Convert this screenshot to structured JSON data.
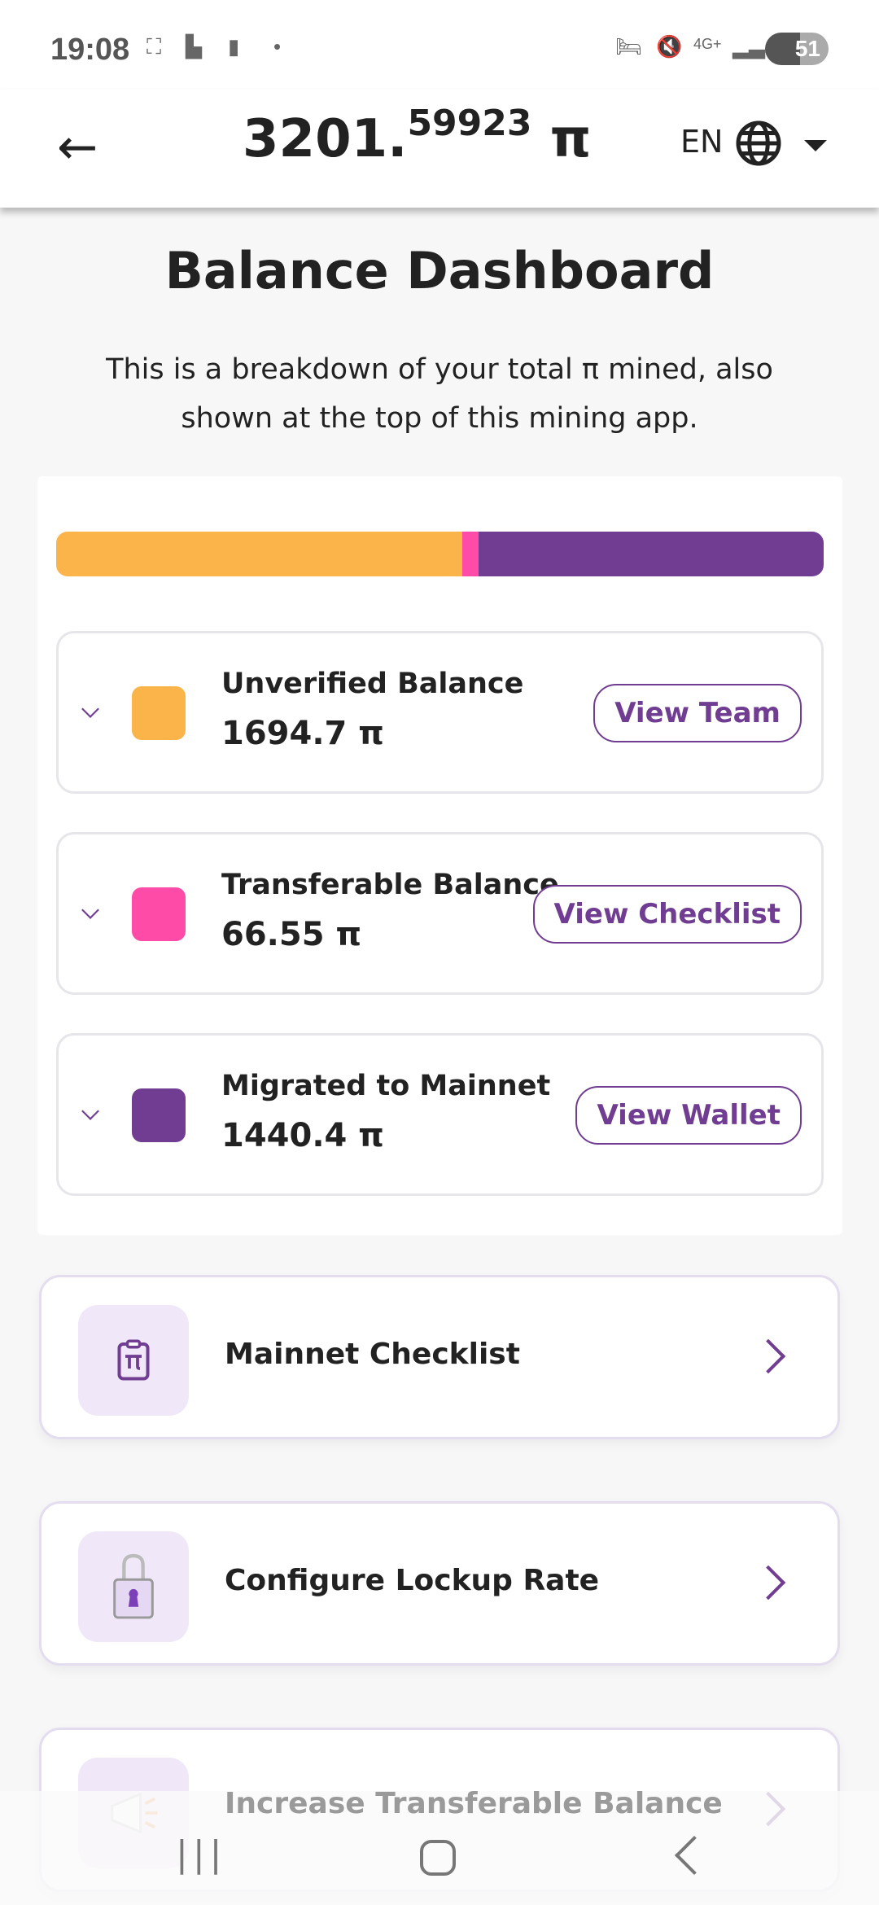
{
  "status_bar": {
    "time": "19:08",
    "network": "4G+",
    "battery": "51"
  },
  "header": {
    "total_integer": "3201.",
    "total_decimal": "59923",
    "currency": "π",
    "language": "EN"
  },
  "page": {
    "title": "Balance Dashboard",
    "subtitle": "This is a breakdown of your total π mined, also shown at the top of this mining app."
  },
  "colors": {
    "unverified": "#FBB44A",
    "transferable": "#FF4BA8",
    "migrated": "#703D92",
    "accent": "#703D92"
  },
  "balances": [
    {
      "label": "Unverified Balance",
      "value": "1694.7 π",
      "amount": 1694.7,
      "button": "View Team"
    },
    {
      "label": "Transferable Balance",
      "value": "66.55 π",
      "amount": 66.55,
      "button": "View Checklist"
    },
    {
      "label": "Migrated to Mainnet",
      "value": "1440.4 π",
      "amount": 1440.4,
      "button": "View Wallet"
    }
  ],
  "links": [
    {
      "label": "Mainnet Checklist",
      "icon": "clipboard-pi-icon"
    },
    {
      "label": "Configure Lockup Rate",
      "icon": "padlock-icon"
    },
    {
      "label": "Increase Transferable Balance",
      "icon": "megaphone-icon"
    }
  ]
}
